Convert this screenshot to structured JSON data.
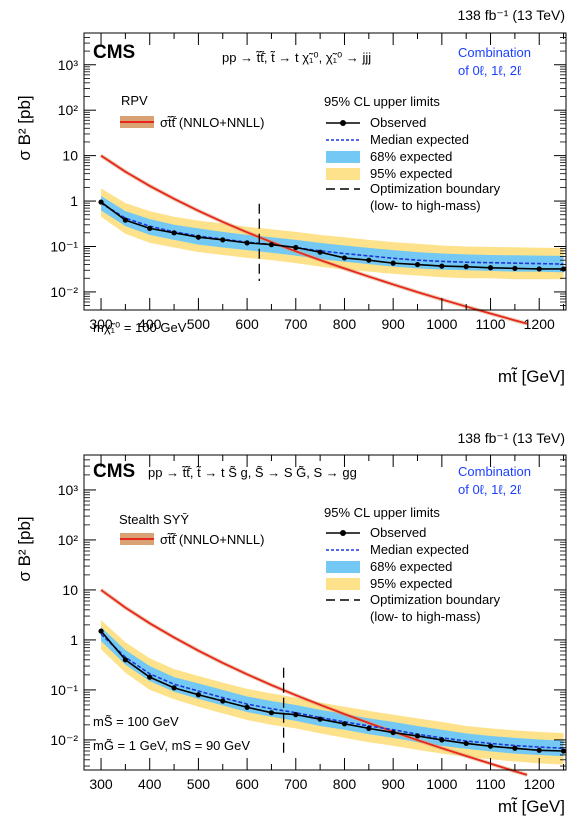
{
  "colors": {
    "observed": "#000000",
    "expected": "#1f35d8",
    "band68": "#73c9f3",
    "band95": "#fde28b",
    "theory": "#e8261c",
    "theory_band": "#d9a274",
    "boundary": "#000000",
    "combination_text": "#1c3fff"
  },
  "chart_data": [
    {
      "type": "line",
      "lumi": "138 fb⁻¹ (13 TeV)",
      "cms_label": "CMS",
      "process": "pp → t̃t̃̄, t̃ → t χ̃₁⁰, χ̃₁⁰ → jjj",
      "combination": [
        "Combination",
        "of 0ℓ, 1ℓ, 2ℓ"
      ],
      "model": "RPV",
      "theory_label": "σt̃t̃̄ (NNLO+NNLL)",
      "limits_header": "95% CL upper limits",
      "legend": [
        "Observed",
        "Median expected",
        "68% expected",
        "95% expected",
        "Optimization boundary",
        "(low- to high-mass)"
      ],
      "annotation": [
        "mχ̃₁⁰ = 100 GeV"
      ],
      "ylabel": "σ B² [pb]",
      "xlabel": "mt̃ [GeV]",
      "xlim": [
        265,
        1255
      ],
      "ylim": [
        0.004,
        5000
      ],
      "log_y": true,
      "x_ticks": [
        300,
        400,
        500,
        600,
        700,
        800,
        900,
        1000,
        1100,
        1200
      ],
      "y_ticks": [
        {
          "v": 0.01,
          "label": "10⁻²"
        },
        {
          "v": 0.1,
          "label": "10⁻¹"
        },
        {
          "v": 1,
          "label": "1"
        },
        {
          "v": 10,
          "label": "10"
        },
        {
          "v": 100,
          "label": "10²"
        },
        {
          "v": 1000,
          "label": "10³"
        }
      ],
      "boundary_x": 625,
      "x": [
        300,
        350,
        400,
        450,
        500,
        550,
        600,
        650,
        700,
        750,
        800,
        850,
        900,
        950,
        1000,
        1050,
        1100,
        1150,
        1200,
        1250
      ],
      "series": [
        {
          "name": "Observed",
          "values": [
            0.95,
            0.38,
            0.25,
            0.2,
            0.16,
            0.14,
            0.12,
            0.11,
            0.095,
            0.075,
            0.056,
            0.05,
            0.043,
            0.04,
            0.037,
            0.036,
            0.034,
            0.033,
            0.032,
            0.032
          ]
        },
        {
          "name": "Median expected",
          "values": [
            0.9,
            0.42,
            0.28,
            0.21,
            0.17,
            0.145,
            0.125,
            0.11,
            0.095,
            0.08,
            0.07,
            0.062,
            0.055,
            0.05,
            0.047,
            0.045,
            0.044,
            0.043,
            0.042,
            0.041
          ]
        },
        {
          "name": "68% expected",
          "lower": [
            0.62,
            0.28,
            0.18,
            0.14,
            0.11,
            0.095,
            0.083,
            0.073,
            0.063,
            0.053,
            0.046,
            0.041,
            0.036,
            0.033,
            0.031,
            0.03,
            0.029,
            0.028,
            0.028,
            0.027
          ],
          "upper": [
            1.3,
            0.6,
            0.4,
            0.3,
            0.25,
            0.21,
            0.18,
            0.16,
            0.14,
            0.12,
            0.105,
            0.093,
            0.083,
            0.075,
            0.07,
            0.067,
            0.065,
            0.064,
            0.063,
            0.062
          ]
        },
        {
          "name": "95% expected",
          "lower": [
            0.45,
            0.19,
            0.12,
            0.095,
            0.075,
            0.065,
            0.056,
            0.05,
            0.043,
            0.036,
            0.031,
            0.028,
            0.025,
            0.023,
            0.021,
            0.02,
            0.02,
            0.019,
            0.019,
            0.019
          ],
          "upper": [
            1.9,
            0.9,
            0.6,
            0.45,
            0.37,
            0.32,
            0.27,
            0.24,
            0.21,
            0.18,
            0.16,
            0.14,
            0.125,
            0.115,
            0.105,
            0.1,
            0.098,
            0.096,
            0.094,
            0.093
          ]
        }
      ],
      "theory": {
        "x": [
          300,
          350,
          400,
          450,
          500,
          550,
          600,
          650,
          700,
          750,
          800,
          850,
          900,
          950,
          1000,
          1050,
          1100,
          1150,
          1175
        ],
        "values": [
          10.0,
          4.43,
          2.15,
          1.12,
          0.609,
          0.347,
          0.205,
          0.125,
          0.0783,
          0.0503,
          0.0328,
          0.0218,
          0.0146,
          0.0099,
          0.00683,
          0.00476,
          0.00335,
          0.00236,
          0.002
        ]
      }
    },
    {
      "type": "line",
      "lumi": "138 fb⁻¹ (13 TeV)",
      "cms_label": "CMS",
      "process": "pp → t̃t̃̄, t̃ → t S̃ g, S̃ → S G̃, S → gg",
      "combination": [
        "Combination",
        "of 0ℓ, 1ℓ, 2ℓ"
      ],
      "model": "Stealth SYȲ",
      "theory_label": "σt̃t̃̄ (NNLO+NNLL)",
      "limits_header": "95% CL upper limits",
      "legend": [
        "Observed",
        "Median expected",
        "68% expected",
        "95% expected",
        "Optimization boundary",
        "(low- to high-mass)"
      ],
      "annotation": [
        "mS̃ = 100 GeV",
        "mG̃ = 1 GeV, mS = 90 GeV"
      ],
      "ylabel": "σ B² [pb]",
      "xlabel": "mt̃ [GeV]",
      "xlim": [
        265,
        1255
      ],
      "ylim": [
        0.0025,
        5000
      ],
      "log_y": true,
      "x_ticks": [
        300,
        400,
        500,
        600,
        700,
        800,
        900,
        1000,
        1100,
        1200
      ],
      "y_ticks": [
        {
          "v": 0.01,
          "label": "10⁻²"
        },
        {
          "v": 0.1,
          "label": "10⁻¹"
        },
        {
          "v": 1,
          "label": "1"
        },
        {
          "v": 10,
          "label": "10"
        },
        {
          "v": 100,
          "label": "10²"
        },
        {
          "v": 1000,
          "label": "10³"
        }
      ],
      "boundary_x": 675,
      "x": [
        300,
        350,
        400,
        450,
        500,
        550,
        600,
        650,
        700,
        750,
        800,
        850,
        900,
        950,
        1000,
        1050,
        1100,
        1150,
        1200,
        1250
      ],
      "series": [
        {
          "name": "Observed",
          "values": [
            1.5,
            0.4,
            0.18,
            0.11,
            0.08,
            0.06,
            0.045,
            0.035,
            0.032,
            0.026,
            0.021,
            0.017,
            0.014,
            0.012,
            0.01,
            0.0085,
            0.0075,
            0.0068,
            0.0062,
            0.006
          ]
        },
        {
          "name": "Median expected",
          "values": [
            1.3,
            0.45,
            0.21,
            0.13,
            0.095,
            0.07,
            0.052,
            0.042,
            0.035,
            0.028,
            0.023,
            0.019,
            0.016,
            0.013,
            0.011,
            0.0095,
            0.0085,
            0.0077,
            0.0072,
            0.0068
          ]
        },
        {
          "name": "68% expected",
          "lower": [
            0.95,
            0.32,
            0.15,
            0.092,
            0.066,
            0.049,
            0.036,
            0.029,
            0.024,
            0.019,
            0.016,
            0.013,
            0.011,
            0.009,
            0.0076,
            0.0066,
            0.0059,
            0.0053,
            0.005,
            0.0047
          ],
          "upper": [
            1.8,
            0.63,
            0.3,
            0.18,
            0.135,
            0.1,
            0.074,
            0.06,
            0.05,
            0.04,
            0.033,
            0.027,
            0.023,
            0.019,
            0.016,
            0.0135,
            0.012,
            0.011,
            0.0102,
            0.0097
          ]
        },
        {
          "name": "95% expected",
          "lower": [
            0.65,
            0.22,
            0.1,
            0.065,
            0.046,
            0.034,
            0.025,
            0.02,
            0.017,
            0.0135,
            0.011,
            0.009,
            0.0076,
            0.0063,
            0.0053,
            0.0046,
            0.0041,
            0.0037,
            0.0034,
            0.0032
          ],
          "upper": [
            2.5,
            0.9,
            0.43,
            0.26,
            0.19,
            0.14,
            0.105,
            0.085,
            0.07,
            0.056,
            0.046,
            0.038,
            0.032,
            0.027,
            0.023,
            0.019,
            0.017,
            0.0155,
            0.0145,
            0.0137
          ]
        }
      ],
      "theory": {
        "x": [
          300,
          350,
          400,
          450,
          500,
          550,
          600,
          650,
          700,
          750,
          800,
          850,
          900,
          950,
          1000,
          1050,
          1100,
          1150,
          1175
        ],
        "values": [
          10.0,
          4.43,
          2.15,
          1.12,
          0.609,
          0.347,
          0.205,
          0.125,
          0.0783,
          0.0503,
          0.0328,
          0.0218,
          0.0146,
          0.0099,
          0.00683,
          0.00476,
          0.00335,
          0.00236,
          0.002
        ]
      }
    }
  ]
}
